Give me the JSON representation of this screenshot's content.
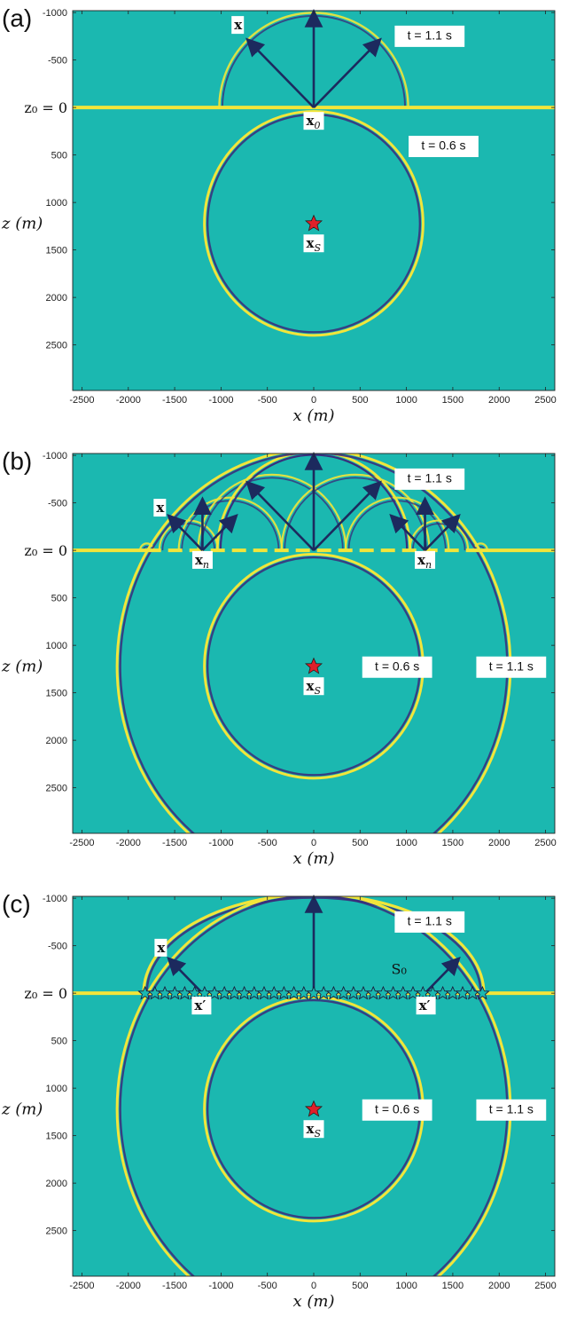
{
  "colors": {
    "background": "#1bb8b0",
    "wavefront": "#f2e53a",
    "wavefront_dark": "#3a2a7a",
    "arrow": "#1c2a5e",
    "source_star": "#e0202a",
    "label_box": "#ffffff"
  },
  "axes": {
    "x_label": "x (m)",
    "z_label": "z (m)",
    "z0_label": "z₀ = 0",
    "x_ticks": [
      "-2500",
      "-2000",
      "-1500",
      "-1000",
      "-500",
      "0",
      "500",
      "1000",
      "1500",
      "2000",
      "2500"
    ],
    "x_tick_values": [
      -2500,
      -2000,
      -1500,
      -1000,
      -500,
      0,
      500,
      1000,
      1500,
      2000,
      2500
    ],
    "z_ticks": [
      "-1000",
      "-500",
      "0",
      "500",
      "1000",
      "1500",
      "2000",
      "2500"
    ],
    "z_tick_values": [
      -1000,
      -500,
      0,
      500,
      1000,
      1500,
      2000,
      2500
    ],
    "xlim": [
      -2600,
      2600
    ],
    "zlim": [
      -1020,
      2980
    ]
  },
  "panels": [
    {
      "letter": "(a)",
      "labels": {
        "x": "x",
        "x0": "x₀",
        "xS": "x_S",
        "t_upper": "t = 1.1 s",
        "t_lower": "t = 0.6 s"
      }
    },
    {
      "letter": "(b)",
      "labels": {
        "x": "x",
        "xn_left": "x_n",
        "xn_right": "x_n",
        "xS": "x_S",
        "t_upper": "t = 1.1 s",
        "t_mid": "t = 0.6 s",
        "t_right": "t = 1.1 s"
      }
    },
    {
      "letter": "(c)",
      "labels": {
        "x": "x",
        "xp_left": "x′",
        "xp_right": "x′",
        "S0": "S₀",
        "xS": "x_S",
        "t_upper": "t = 1.1 s",
        "t_mid": "t = 0.6 s",
        "t_right": "t = 1.1 s"
      }
    }
  ],
  "source": {
    "x": 0,
    "z": 1220
  },
  "wave": {
    "upper_radius": 1020,
    "lower_radius": 1160,
    "outer_radius": 2260,
    "huygens_count": 9
  }
}
